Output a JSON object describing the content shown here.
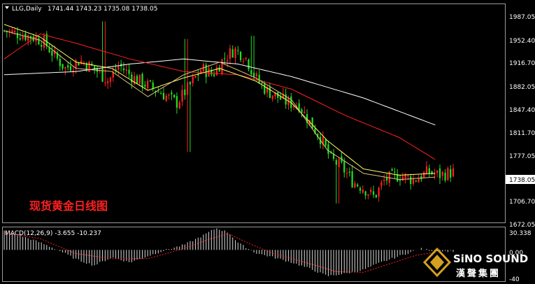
{
  "header": {
    "symbol": "LLG,Daily",
    "ohlc": "1741.44 1743.23 1735.08 1738.05"
  },
  "title_cn": "现货黄金日线图",
  "price_axis": {
    "ticks": [
      "1987.05",
      "1952.40",
      "1916.70",
      "1882.05",
      "1847.40",
      "1811.70",
      "1777.05",
      "1706.70",
      "1672.05"
    ],
    "current": "1738.05"
  },
  "macd": {
    "label": "MACD(12,26,9) -3.655 -10.237",
    "ticks": [
      "30.338",
      "0.00",
      "-40"
    ]
  },
  "logo": {
    "main": "SiNO SOUND",
    "sub": "漢聲集團"
  },
  "colors": {
    "background": "#000000",
    "up": "#ff2020",
    "down": "#22dd22",
    "ma_white": "#ffffff",
    "ma_red": "#ff2020",
    "ma_yellow": "#ffff66",
    "ma_gold": "#e0c080",
    "macd_signal": "#ff2020",
    "logo_gold": "#d4a020"
  },
  "chart_data": {
    "type": "candlestick",
    "ylim": [
      1662,
      2005
    ],
    "candle_count": 170,
    "close_path": [
      [
        0,
        1965
      ],
      [
        8,
        1960
      ],
      [
        16,
        1955
      ],
      [
        22,
        1948
      ],
      [
        28,
        1925
      ],
      [
        34,
        1905
      ],
      [
        42,
        1918
      ],
      [
        50,
        1905
      ],
      [
        58,
        1885
      ],
      [
        64,
        1910
      ],
      [
        72,
        1890
      ],
      [
        80,
        1878
      ],
      [
        88,
        1865
      ],
      [
        96,
        1850
      ],
      [
        104,
        1880
      ],
      [
        110,
        1905
      ],
      [
        116,
        1895
      ],
      [
        122,
        1920
      ],
      [
        128,
        1935
      ],
      [
        134,
        1925
      ],
      [
        140,
        1890
      ],
      [
        146,
        1870
      ],
      [
        152,
        1860
      ],
      [
        158,
        1850
      ],
      [
        164,
        1848
      ],
      [
        170,
        1820
      ],
      [
        176,
        1795
      ],
      [
        182,
        1760
      ],
      [
        188,
        1748
      ],
      [
        194,
        1725
      ],
      [
        200,
        1715
      ],
      [
        206,
        1700
      ],
      [
        212,
        1728
      ],
      [
        220,
        1735
      ],
      [
        228,
        1728
      ],
      [
        236,
        1740
      ],
      [
        242,
        1735
      ],
      [
        250,
        1740
      ]
    ],
    "wicks_at": [
      [
        55,
        1980
      ],
      [
        102,
        1952
      ],
      [
        103,
        1772
      ],
      [
        138,
        1957
      ],
      [
        185,
        1690
      ]
    ],
    "ma_paths": {
      "white": [
        [
          0,
          1895
        ],
        [
          40,
          1900
        ],
        [
          70,
          1912
        ],
        [
          100,
          1920
        ],
        [
          130,
          1912
        ],
        [
          160,
          1892
        ],
        [
          200,
          1858
        ],
        [
          240,
          1815
        ]
      ],
      "red": [
        [
          0,
          1920
        ],
        [
          20,
          1960
        ],
        [
          40,
          1945
        ],
        [
          70,
          1920
        ],
        [
          100,
          1900
        ],
        [
          130,
          1895
        ],
        [
          160,
          1872
        ],
        [
          190,
          1830
        ],
        [
          220,
          1795
        ],
        [
          240,
          1760
        ]
      ],
      "yellow": [
        [
          0,
          1975
        ],
        [
          20,
          1955
        ],
        [
          40,
          1915
        ],
        [
          60,
          1905
        ],
        [
          80,
          1870
        ],
        [
          100,
          1890
        ],
        [
          120,
          1905
        ],
        [
          140,
          1885
        ],
        [
          160,
          1850
        ],
        [
          180,
          1790
        ],
        [
          200,
          1745
        ],
        [
          220,
          1735
        ],
        [
          240,
          1738
        ]
      ],
      "gold": [
        [
          0,
          1965
        ],
        [
          20,
          1950
        ],
        [
          40,
          1905
        ],
        [
          60,
          1900
        ],
        [
          80,
          1860
        ],
        [
          100,
          1895
        ],
        [
          120,
          1915
        ],
        [
          140,
          1890
        ],
        [
          160,
          1855
        ],
        [
          180,
          1775
        ],
        [
          200,
          1738
        ],
        [
          220,
          1728
        ],
        [
          240,
          1732
        ]
      ]
    },
    "macd_hist": [
      [
        0,
        30
      ],
      [
        10,
        22
      ],
      [
        20,
        12
      ],
      [
        30,
        0
      ],
      [
        40,
        -15
      ],
      [
        50,
        -25
      ],
      [
        60,
        -12
      ],
      [
        70,
        -20
      ],
      [
        80,
        -10
      ],
      [
        90,
        0
      ],
      [
        100,
        8
      ],
      [
        110,
        22
      ],
      [
        118,
        35
      ],
      [
        125,
        28
      ],
      [
        130,
        12
      ],
      [
        140,
        -5
      ],
      [
        150,
        -12
      ],
      [
        160,
        -20
      ],
      [
        170,
        -30
      ],
      [
        180,
        -42
      ],
      [
        190,
        -38
      ],
      [
        200,
        -32
      ],
      [
        210,
        -20
      ],
      [
        220,
        -10
      ],
      [
        232,
        2
      ],
      [
        240,
        -2
      ]
    ],
    "macd_signal": [
      [
        0,
        28
      ],
      [
        20,
        18
      ],
      [
        40,
        -6
      ],
      [
        60,
        -14
      ],
      [
        80,
        -14
      ],
      [
        100,
        2
      ],
      [
        115,
        18
      ],
      [
        125,
        26
      ],
      [
        135,
        12
      ],
      [
        150,
        -6
      ],
      [
        170,
        -22
      ],
      [
        185,
        -35
      ],
      [
        200,
        -36
      ],
      [
        215,
        -22
      ],
      [
        230,
        -8
      ],
      [
        240,
        -4
      ]
    ],
    "macd_ylim": [
      -48,
      34
    ]
  }
}
